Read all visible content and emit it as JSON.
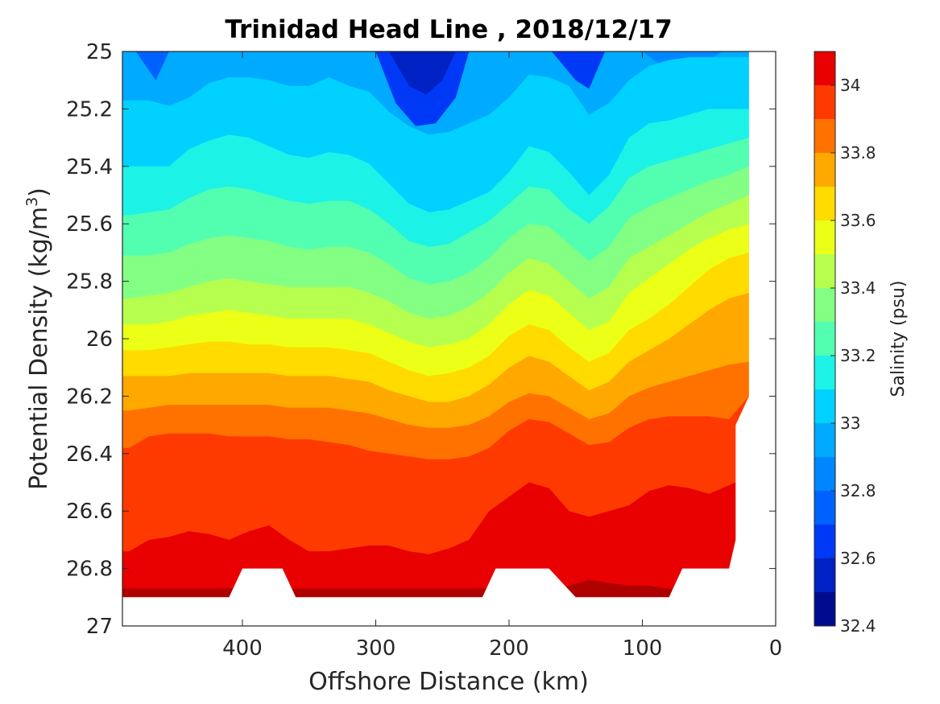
{
  "chart_data": {
    "type": "filled-contour",
    "title": "Trinidad Head Line , 2018/12/17",
    "xlabel": "Offshore Distance (km)",
    "ylabel_main": "Potential Density (kg/m",
    "ylabel_sup": "3",
    "ylabel_tail": ")",
    "xlim": [
      490,
      0
    ],
    "x_reversed": true,
    "x_ticks": [
      "400",
      "300",
      "200",
      "100",
      "0"
    ],
    "x_tick_values": [
      400,
      300,
      200,
      100,
      0
    ],
    "ylim": [
      25,
      27
    ],
    "y_reversed": true,
    "y_ticks": [
      "25",
      "25.2",
      "25.4",
      "25.6",
      "25.8",
      "26",
      "26.2",
      "26.4",
      "26.6",
      "26.8",
      "27"
    ],
    "y_tick_values": [
      25,
      25.2,
      25.4,
      25.6,
      25.8,
      26,
      26.2,
      26.4,
      26.6,
      26.8,
      27
    ],
    "colorbar": {
      "label": "Salinity (psu)",
      "range": [
        32.4,
        34.1
      ],
      "ticks": [
        "32.4",
        "32.6",
        "32.8",
        "33",
        "33.2",
        "33.4",
        "33.6",
        "33.8",
        "34"
      ],
      "tick_values": [
        32.4,
        32.6,
        32.8,
        33.0,
        33.2,
        33.4,
        33.6,
        33.8,
        34.0
      ],
      "levels": [
        32.4,
        32.5,
        32.6,
        32.7,
        32.8,
        32.9,
        33.0,
        33.1,
        33.2,
        33.3,
        33.4,
        33.5,
        33.6,
        33.7,
        33.8,
        33.9,
        34.0,
        34.1
      ],
      "colors": [
        "#000c8f",
        "#0021c4",
        "#0039f5",
        "#0061ff",
        "#0087ff",
        "#00aaff",
        "#00d1ff",
        "#1df2e6",
        "#52ffb1",
        "#83ff84",
        "#b7ff4e",
        "#ebff17",
        "#ffdb00",
        "#ffa800",
        "#ff7200",
        "#ff3a00",
        "#e90000",
        "#af0000",
        "#780000"
      ]
    },
    "data_x_km": [
      485,
      470,
      455,
      440,
      425,
      410,
      395,
      380,
      365,
      350,
      335,
      320,
      305,
      290,
      275,
      260,
      245,
      230,
      215,
      200,
      185,
      170,
      155,
      140,
      125,
      110,
      95,
      80,
      65,
      50,
      35,
      20
    ],
    "isopycnals": {
      "33.0": [
        25.17,
        25.17,
        25.19,
        25.16,
        25.11,
        25.09,
        25.09,
        25.1,
        25.12,
        25.12,
        25.09,
        25.12,
        25.14,
        25.21,
        25.26,
        25.29,
        25.28,
        25.25,
        25.22,
        25.16,
        25.08,
        25.09,
        25.12,
        25.22,
        25.18,
        25.1,
        25.05,
        25.03,
        25.02,
        25.02,
        25.02,
        25.02
      ],
      "33.1": [
        25.4,
        25.4,
        25.4,
        25.34,
        25.31,
        25.29,
        25.3,
        25.33,
        25.36,
        25.37,
        25.35,
        25.36,
        25.39,
        25.46,
        25.53,
        25.56,
        25.55,
        25.52,
        25.49,
        25.42,
        25.33,
        25.35,
        25.42,
        25.5,
        25.43,
        25.3,
        25.25,
        25.24,
        25.22,
        25.2,
        25.2,
        25.2
      ],
      "33.2": [
        25.57,
        25.56,
        25.55,
        25.51,
        25.48,
        25.47,
        25.48,
        25.5,
        25.52,
        25.53,
        25.52,
        25.52,
        25.55,
        25.6,
        25.66,
        25.68,
        25.67,
        25.63,
        25.59,
        25.53,
        25.47,
        25.48,
        25.55,
        25.6,
        25.54,
        25.44,
        25.4,
        25.38,
        25.36,
        25.34,
        25.32,
        25.3
      ],
      "33.3": [
        25.71,
        25.71,
        25.7,
        25.67,
        25.65,
        25.64,
        25.65,
        25.66,
        25.68,
        25.69,
        25.68,
        25.68,
        25.7,
        25.74,
        25.79,
        25.81,
        25.8,
        25.77,
        25.72,
        25.65,
        25.6,
        25.61,
        25.67,
        25.73,
        25.68,
        25.58,
        25.54,
        25.51,
        25.48,
        25.45,
        25.43,
        25.4
      ],
      "33.4": [
        25.86,
        25.85,
        25.84,
        25.82,
        25.8,
        25.79,
        25.8,
        25.81,
        25.82,
        25.82,
        25.82,
        25.82,
        25.84,
        25.87,
        25.91,
        25.93,
        25.92,
        25.89,
        25.84,
        25.77,
        25.72,
        25.74,
        25.8,
        25.86,
        25.82,
        25.72,
        25.68,
        25.64,
        25.6,
        25.56,
        25.53,
        25.5
      ],
      "33.5": [
        25.95,
        25.95,
        25.94,
        25.92,
        25.91,
        25.9,
        25.91,
        25.92,
        25.93,
        25.93,
        25.93,
        25.93,
        25.95,
        25.98,
        26.01,
        26.03,
        26.02,
        26.0,
        25.95,
        25.88,
        25.83,
        25.85,
        25.91,
        25.97,
        25.94,
        25.84,
        25.79,
        25.74,
        25.69,
        25.65,
        25.62,
        25.6
      ],
      "33.6": [
        26.04,
        26.04,
        26.03,
        26.02,
        26.01,
        26.01,
        26.02,
        26.02,
        26.03,
        26.03,
        26.03,
        26.04,
        26.05,
        26.08,
        26.11,
        26.13,
        26.12,
        26.1,
        26.06,
        25.99,
        25.95,
        25.97,
        26.03,
        26.08,
        26.05,
        25.97,
        25.93,
        25.88,
        25.82,
        25.76,
        25.72,
        25.7
      ],
      "33.7": [
        26.13,
        26.13,
        26.13,
        26.12,
        26.12,
        26.12,
        26.12,
        26.12,
        26.13,
        26.13,
        26.13,
        26.14,
        26.15,
        26.18,
        26.2,
        26.22,
        26.22,
        26.2,
        26.16,
        26.1,
        26.06,
        26.08,
        26.13,
        26.18,
        26.15,
        26.08,
        26.04,
        26.0,
        25.95,
        25.9,
        25.86,
        25.84
      ],
      "33.8": [
        26.25,
        26.24,
        26.23,
        26.23,
        26.23,
        26.23,
        26.23,
        26.23,
        26.24,
        26.24,
        26.24,
        26.25,
        26.26,
        26.28,
        26.3,
        26.31,
        26.31,
        26.3,
        26.27,
        26.22,
        26.19,
        26.2,
        26.24,
        26.28,
        26.26,
        26.2,
        26.17,
        26.15,
        26.13,
        26.11,
        26.09,
        26.08
      ],
      "33.9": [
        26.38,
        26.34,
        26.33,
        26.33,
        26.33,
        26.34,
        26.34,
        26.34,
        26.35,
        26.35,
        26.36,
        26.37,
        26.39,
        26.4,
        26.41,
        26.42,
        26.42,
        26.41,
        26.38,
        26.32,
        26.28,
        26.29,
        26.33,
        26.37,
        26.36,
        26.31,
        26.28,
        26.27,
        26.27,
        26.27,
        26.28,
        26.2
      ],
      "34.0": [
        26.74,
        26.7,
        26.69,
        26.67,
        26.68,
        26.7,
        26.67,
        26.65,
        26.7,
        26.74,
        26.74,
        26.73,
        26.72,
        26.72,
        26.74,
        26.75,
        26.73,
        26.7,
        26.6,
        26.55,
        26.5,
        26.52,
        26.6,
        26.62,
        26.6,
        26.58,
        26.53,
        26.51,
        26.52,
        26.54,
        26.51,
        26.48
      ],
      "34.1": [
        26.87,
        26.87,
        26.87,
        26.87,
        26.87,
        26.87,
        26.87,
        26.87,
        26.87,
        26.87,
        26.87,
        26.87,
        26.87,
        26.87,
        26.87,
        26.87,
        26.87,
        26.87,
        26.87,
        26.87,
        26.87,
        26.87,
        26.86,
        26.84,
        26.85,
        26.86,
        26.86,
        26.87,
        26.87,
        26.87,
        26.87,
        26.87
      ]
    },
    "deep_bottom_x_km": [
      490,
      410,
      400,
      380,
      370,
      360,
      220,
      210,
      190,
      170,
      150,
      130,
      80,
      70,
      50,
      35,
      30,
      30,
      20
    ],
    "deep_bottom_y": [
      26.9,
      26.9,
      26.8,
      26.8,
      26.8,
      26.9,
      26.9,
      26.8,
      26.8,
      26.8,
      26.9,
      26.9,
      26.9,
      26.8,
      26.8,
      26.8,
      26.7,
      26.3,
      26.2
    ]
  }
}
